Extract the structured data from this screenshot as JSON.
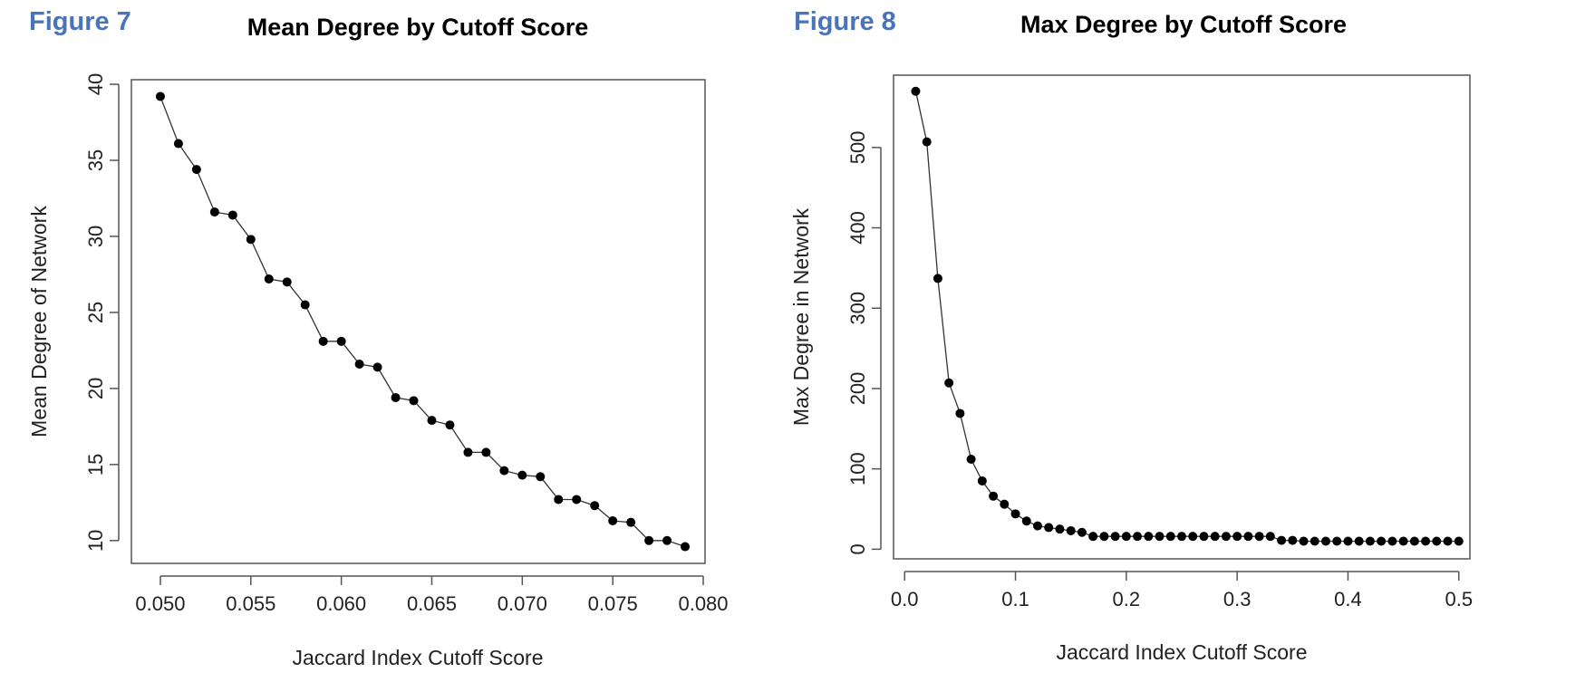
{
  "figures": [
    {
      "label": "Figure 7"
    },
    {
      "label": "Figure 8"
    }
  ],
  "chart_data": [
    {
      "type": "line",
      "title": "Mean Degree by Cutoff Score",
      "xlabel": "Jaccard Index Cutoff Score",
      "ylabel": "Mean Degree of Network",
      "xlim": [
        0.0484,
        0.0801
      ],
      "ylim": [
        8.5,
        40.3
      ],
      "x_ticks": [
        0.05,
        0.055,
        0.06,
        0.065,
        0.07,
        0.075,
        0.08
      ],
      "x_tick_labels": [
        "0.050",
        "0.055",
        "0.060",
        "0.065",
        "0.070",
        "0.075",
        "0.080"
      ],
      "y_ticks": [
        10,
        15,
        20,
        25,
        30,
        35,
        40
      ],
      "y_tick_labels": [
        "10",
        "15",
        "20",
        "25",
        "30",
        "35",
        "40"
      ],
      "grid": false,
      "marker": "filled-circle",
      "color": "#000000",
      "x": [
        0.05,
        0.051,
        0.052,
        0.053,
        0.054,
        0.055,
        0.056,
        0.057,
        0.058,
        0.059,
        0.06,
        0.061,
        0.062,
        0.063,
        0.064,
        0.065,
        0.066,
        0.067,
        0.068,
        0.069,
        0.07,
        0.071,
        0.072,
        0.073,
        0.074,
        0.075,
        0.076,
        0.077,
        0.078,
        0.079
      ],
      "y": [
        39.2,
        36.1,
        34.4,
        31.6,
        31.4,
        29.8,
        27.2,
        27.0,
        25.5,
        23.1,
        23.1,
        21.6,
        21.4,
        19.4,
        19.2,
        17.9,
        17.6,
        15.8,
        15.8,
        14.6,
        14.3,
        14.2,
        12.7,
        12.7,
        12.3,
        11.3,
        11.2,
        10.0,
        10.0,
        9.6
      ]
    },
    {
      "type": "line",
      "title": "Max Degree by Cutoff Score",
      "xlabel": "Jaccard Index Cutoff Score",
      "ylabel": "Max Degree in Network",
      "xlim": [
        -0.01,
        0.51
      ],
      "ylim": [
        -12,
        590
      ],
      "x_ticks": [
        0.0,
        0.1,
        0.2,
        0.3,
        0.4,
        0.5
      ],
      "x_tick_labels": [
        "0.0",
        "0.1",
        "0.2",
        "0.3",
        "0.4",
        "0.5"
      ],
      "y_ticks": [
        0,
        100,
        200,
        300,
        400,
        500
      ],
      "y_tick_labels": [
        "0",
        "100",
        "200",
        "300",
        "400",
        "500"
      ],
      "grid": false,
      "marker": "filled-circle",
      "color": "#000000",
      "x": [
        0.01,
        0.02,
        0.03,
        0.04,
        0.05,
        0.06,
        0.07,
        0.08,
        0.09,
        0.1,
        0.11,
        0.12,
        0.13,
        0.14,
        0.15,
        0.16,
        0.17,
        0.18,
        0.19,
        0.2,
        0.21,
        0.22,
        0.23,
        0.24,
        0.25,
        0.26,
        0.27,
        0.28,
        0.29,
        0.3,
        0.31,
        0.32,
        0.33,
        0.34,
        0.35,
        0.36,
        0.37,
        0.38,
        0.39,
        0.4,
        0.41,
        0.42,
        0.43,
        0.44,
        0.45,
        0.46,
        0.47,
        0.48,
        0.49,
        0.5
      ],
      "y": [
        570,
        507,
        337,
        207,
        169,
        112,
        85,
        66,
        56,
        44,
        35,
        29,
        27,
        25,
        23,
        21,
        16,
        16,
        16,
        16,
        16,
        16,
        16,
        16,
        16,
        16,
        16,
        16,
        16,
        16,
        16,
        16,
        16,
        11,
        11,
        10,
        10,
        10,
        10,
        10,
        10,
        10,
        10,
        10,
        10,
        10,
        10,
        10,
        10,
        10
      ]
    }
  ]
}
